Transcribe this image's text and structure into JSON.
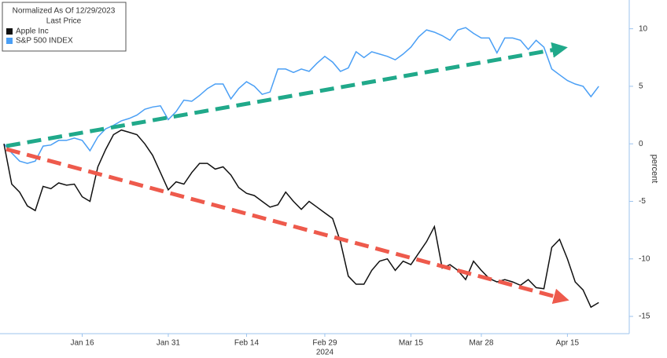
{
  "chart_data": {
    "type": "line",
    "legend_title": "Normalized As Of 12/29/2023",
    "legend_subtitle": "Last Price",
    "y_axis_label": "percent",
    "x_axis_year": "2024",
    "categories": [
      null,
      null,
      null,
      null,
      null,
      null,
      null,
      null,
      null,
      null,
      "Jan 16",
      null,
      null,
      null,
      null,
      null,
      null,
      null,
      null,
      null,
      null,
      "Jan 31",
      null,
      null,
      null,
      null,
      null,
      null,
      null,
      null,
      null,
      "Feb 14",
      null,
      null,
      null,
      null,
      null,
      null,
      null,
      null,
      null,
      "Feb 29",
      null,
      null,
      null,
      null,
      null,
      null,
      null,
      null,
      null,
      null,
      "Mar 15",
      null,
      null,
      null,
      null,
      null,
      null,
      null,
      null,
      "Mar 28",
      null,
      null,
      null,
      null,
      null,
      null,
      null,
      null,
      null,
      null,
      "Apr 15",
      null,
      null,
      null,
      null
    ],
    "series": [
      {
        "name": "Apple Inc",
        "color": "#111111",
        "values": [
          0,
          -3.5,
          -4.2,
          -5.4,
          -5.8,
          -3.7,
          -3.9,
          -3.4,
          -3.6,
          -3.5,
          -4.6,
          -5.0,
          -2.0,
          -0.5,
          0.8,
          1.2,
          1.0,
          0.8,
          0,
          -1.0,
          -2.5,
          -4.0,
          -3.3,
          -3.5,
          -2.5,
          -1.7,
          -1.7,
          -2.2,
          -2.0,
          -2.7,
          -3.8,
          -4.3,
          -4.5,
          -5.0,
          -5.5,
          -5.3,
          -4.2,
          -5.0,
          -5.7,
          -5.0,
          -5.5,
          -6.0,
          -6.5,
          -8.5,
          -11.5,
          -12.2,
          -12.2,
          -11.0,
          -10.2,
          -10.0,
          -11.0,
          -10.2,
          -10.5,
          -9.5,
          -8.5,
          -7.2,
          -10.8,
          -10.5,
          -11.0,
          -11.8,
          -10.2,
          -11.0,
          -11.7,
          -12.0,
          -11.8,
          -12.0,
          -12.3,
          -11.8,
          -12.5,
          -12.6,
          -9.0,
          -8.3,
          -10.0,
          -12.0,
          -12.7,
          -14.2,
          -13.8
        ]
      },
      {
        "name": "S&P 500 INDEX",
        "color": "#4a9ff5",
        "values": [
          0,
          -0.8,
          -1.5,
          -1.7,
          -1.5,
          -0.2,
          -0.1,
          0.3,
          0.3,
          0.5,
          0.3,
          -0.6,
          0.6,
          1.3,
          1.6,
          2,
          2.2,
          2.5,
          3,
          3.2,
          3.3,
          2.1,
          2.8,
          3.8,
          3.7,
          4.2,
          4.8,
          5.2,
          5.2,
          3.9,
          4.8,
          5.4,
          5.0,
          4.3,
          4.5,
          6.5,
          6.5,
          6.2,
          6.5,
          6.3,
          7.0,
          7.6,
          7.1,
          6.3,
          6.6,
          8.0,
          7.5,
          8.0,
          7.8,
          7.6,
          7.3,
          7.8,
          8.4,
          9.3,
          9.9,
          9.7,
          9.4,
          9.0,
          9.9,
          10.1,
          9.6,
          9.2,
          9.2,
          7.9,
          9.2,
          9.2,
          9.0,
          8.2,
          9.0,
          8.4,
          6.5,
          6.0,
          5.5,
          5.2,
          5.0,
          4.1,
          5.0
        ]
      }
    ],
    "ylim": [
      -16.5,
      12.5
    ],
    "yticks": [
      -15,
      -10,
      -5,
      0,
      5,
      10
    ],
    "grid": false
  }
}
